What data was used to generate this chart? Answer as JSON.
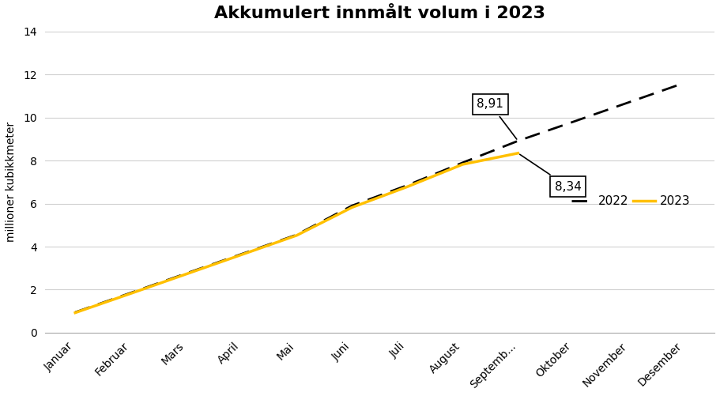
{
  "title": "Akkumulert innmålt volum i 2023",
  "ylabel": "millioner kubikkmeter",
  "categories": [
    "Januar",
    "Februar",
    "Mars",
    "April",
    "Mai",
    "Juni",
    "Juli",
    "August",
    "Septemb...",
    "Oktober",
    "November",
    "Desember"
  ],
  "line_2022": [
    0.95,
    1.85,
    2.75,
    3.65,
    4.55,
    5.9,
    6.85,
    7.9,
    8.91,
    9.8,
    10.7,
    11.6
  ],
  "line_2023": [
    0.93,
    1.82,
    2.72,
    3.62,
    4.52,
    5.82,
    6.78,
    7.82,
    8.34,
    null,
    null,
    null
  ],
  "annotation_2022_val": "8,91",
  "annotation_2023_val": "8,34",
  "annotation_2022_idx": 8,
  "annotation_2023_idx": 8,
  "color_2022": "#000000",
  "color_2023": "#FFC000",
  "ylim": [
    0,
    14
  ],
  "yticks": [
    0,
    2,
    4,
    6,
    8,
    10,
    12,
    14
  ],
  "background_color": "#ffffff",
  "title_fontsize": 16,
  "axis_fontsize": 10,
  "tick_fontsize": 10,
  "legend_labels": [
    "2022",
    "2023"
  ],
  "fig_width": 9.11,
  "fig_height": 5.01,
  "dpi": 100
}
